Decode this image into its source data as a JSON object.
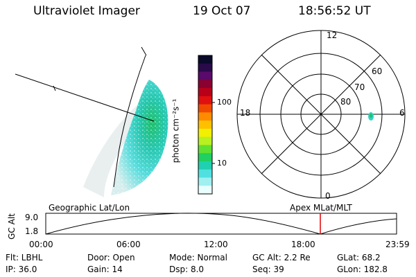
{
  "header": {
    "instrument": "Ultraviolet Imager",
    "date": "19 Oct 07",
    "time": "18:56:52 UT"
  },
  "colorbar": {
    "unit_label": "photon cm⁻²s⁻¹",
    "ticks": [
      "100",
      "10"
    ],
    "colors": [
      "#0a0a2a",
      "#2a0a4a",
      "#5a0a6a",
      "#8a0030",
      "#b80018",
      "#e01010",
      "#f04a00",
      "#ff8c00",
      "#ffc000",
      "#f0f000",
      "#b8f020",
      "#60e030",
      "#20d060",
      "#20d0b0",
      "#50e0e0",
      "#a0f0f0",
      "#e8ffff"
    ]
  },
  "polar": {
    "mlt_labels": {
      "top": "12",
      "left": "18",
      "right": "6",
      "bottom": "0"
    },
    "lat_labels": [
      "60",
      "70",
      "80"
    ]
  },
  "timeline": {
    "left_title": "Geographic Lat/Lon",
    "right_title": "Apex MLat/MLT",
    "y_axis_label": "GC Alt",
    "y_ticks": [
      "9.0",
      "1.8"
    ],
    "x_ticks": [
      "00:00",
      "06:00",
      "12:00",
      "18:00",
      "23:59"
    ],
    "marker_color": "#e00000"
  },
  "info": {
    "row1": {
      "filter": "Flt: LBHL",
      "door": "Door: Open",
      "mode": "Mode: Normal",
      "gc_alt": "GC Alt: 2.2 Re",
      "glat": "GLat:  68.2"
    },
    "row2": {
      "ip": "IP: 36.0",
      "gain": "Gain: 14",
      "dsp": "Dsp:    8.0",
      "seq": "Seq: 39",
      "glon": "GLon: 182.8"
    }
  }
}
